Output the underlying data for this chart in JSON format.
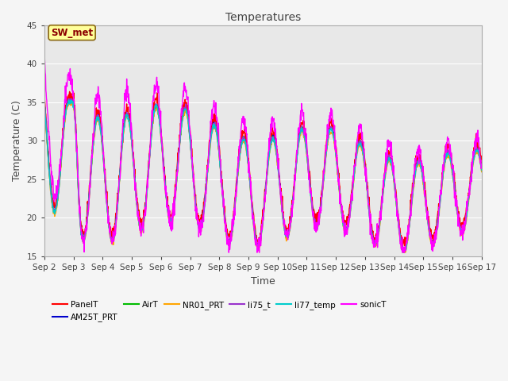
{
  "title": "Temperatures",
  "xlabel": "Time",
  "ylabel": "Temperature (C)",
  "ylim": [
    15,
    45
  ],
  "series_order": [
    "PanelT",
    "AM25T_PRT",
    "AirT",
    "NR01_PRT",
    "li75_t",
    "li77_temp",
    "sonicT"
  ],
  "series": {
    "PanelT": {
      "color": "#ff0000",
      "lw": 1.0
    },
    "AM25T_PRT": {
      "color": "#0000cc",
      "lw": 1.0
    },
    "AirT": {
      "color": "#00bb00",
      "lw": 1.0
    },
    "NR01_PRT": {
      "color": "#ffa500",
      "lw": 1.0
    },
    "li75_t": {
      "color": "#9933cc",
      "lw": 1.0
    },
    "li77_temp": {
      "color": "#00cccc",
      "lw": 1.0
    },
    "sonicT": {
      "color": "#ff00ff",
      "lw": 1.0
    }
  },
  "annotation_text": "SW_met",
  "annotation_color": "#8b0000",
  "annotation_bg": "#ffff99",
  "annotation_border": "#8b6914",
  "x_tick_labels": [
    "Sep 2",
    "Sep 3",
    "Sep 4",
    "Sep 5",
    "Sep 6",
    "Sep 7",
    "Sep 8",
    "Sep 9",
    "Sep 10",
    "Sep 11",
    "Sep 12",
    "Sep 13",
    "Sep 14",
    "Sep 15",
    "Sep 16",
    "Sep 17"
  ],
  "bg_color": "#e8e8e8",
  "grid_color": "#ffffff",
  "yticks": [
    15,
    20,
    25,
    30,
    35,
    40,
    45
  ],
  "figsize": [
    6.4,
    4.8
  ],
  "dpi": 100
}
